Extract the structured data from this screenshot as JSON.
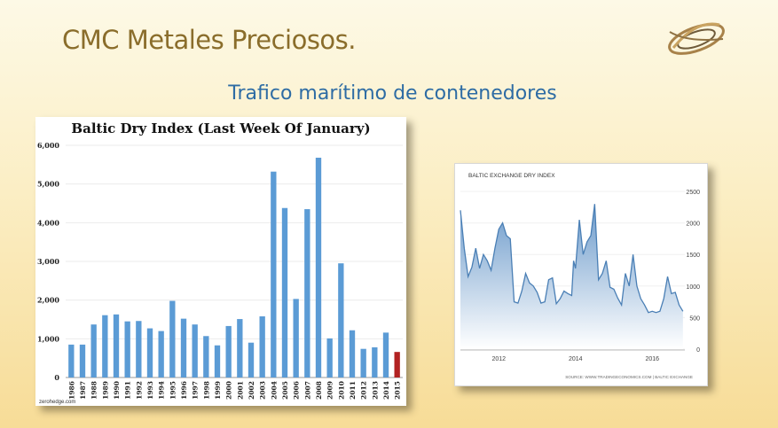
{
  "slide": {
    "title": "CMC Metales Preciosos.",
    "subtitle": "Trafico marítimo de contenedores"
  },
  "chart_data": [
    {
      "type": "bar",
      "title": "Baltic Dry Index (Last Week Of January)",
      "categories": [
        "1986",
        "1987",
        "1988",
        "1989",
        "1990",
        "1991",
        "1992",
        "1993",
        "1994",
        "1995",
        "1996",
        "1997",
        "1998",
        "1999",
        "2000",
        "2001",
        "2002",
        "2003",
        "2004",
        "2005",
        "2006",
        "2007",
        "2008",
        "2009",
        "2010",
        "2011",
        "2012",
        "2013",
        "2014",
        "2015"
      ],
      "values": [
        850,
        850,
        1370,
        1610,
        1630,
        1450,
        1460,
        1270,
        1200,
        1980,
        1520,
        1370,
        1070,
        830,
        1330,
        1510,
        900,
        1580,
        5320,
        4380,
        2030,
        4350,
        5680,
        1010,
        2950,
        1220,
        740,
        780,
        1160,
        660
      ],
      "highlight_index": 29,
      "ylim": [
        0,
        6000
      ],
      "yticks": [
        0,
        1000,
        2000,
        3000,
        4000,
        5000,
        6000
      ],
      "ytick_labels": [
        "0",
        "1,000",
        "2,000",
        "3,000",
        "4,000",
        "5,000",
        "6,000"
      ],
      "colors": {
        "bar": "#5b9bd5",
        "highlight": "#b22222"
      },
      "source": "zerohedge.com"
    },
    {
      "type": "area",
      "title": "BALTIC EXCHANGE DRY INDEX",
      "x": [
        2011.0,
        2011.1,
        2011.2,
        2011.3,
        2011.4,
        2011.5,
        2011.6,
        2011.7,
        2011.8,
        2011.9,
        2012.0,
        2012.1,
        2012.2,
        2012.3,
        2012.4,
        2012.5,
        2012.6,
        2012.7,
        2012.8,
        2012.9,
        2013.0,
        2013.1,
        2013.2,
        2013.3,
        2013.4,
        2013.5,
        2013.6,
        2013.7,
        2013.8,
        2013.9,
        2013.95,
        2014.0,
        2014.1,
        2014.2,
        2014.3,
        2014.4,
        2014.5,
        2014.6,
        2014.7,
        2014.8,
        2014.9,
        2015.0,
        2015.1,
        2015.2,
        2015.3,
        2015.4,
        2015.5,
        2015.6,
        2015.7,
        2015.8,
        2015.9,
        2016.0,
        2016.1,
        2016.2,
        2016.3,
        2016.4,
        2016.5,
        2016.6,
        2016.7,
        2016.8
      ],
      "values": [
        2200,
        1600,
        1150,
        1300,
        1600,
        1280,
        1500,
        1400,
        1250,
        1600,
        1900,
        2000,
        1800,
        1750,
        750,
        730,
        920,
        1200,
        1050,
        1000,
        900,
        730,
        750,
        1100,
        1130,
        720,
        800,
        920,
        880,
        850,
        1400,
        1280,
        2050,
        1500,
        1700,
        1800,
        2300,
        1100,
        1200,
        1400,
        980,
        950,
        810,
        700,
        1200,
        1000,
        1500,
        1000,
        800,
        700,
        580,
        600,
        580,
        600,
        800,
        1150,
        880,
        900,
        700,
        600
      ],
      "xlim": [
        2011,
        2016.85
      ],
      "ylim": [
        0,
        2500
      ],
      "yticks": [
        0,
        500,
        1000,
        1500,
        2000,
        2500
      ],
      "ytick_labels": [
        "0",
        "500",
        "1000",
        "1500",
        "2000",
        "2500"
      ],
      "xticks": [
        2012,
        2014,
        2016
      ],
      "xtick_labels": [
        "2012",
        "2014",
        "2016"
      ],
      "source": "SOURCE: WWW.TRADINGECONOMICS.COM | BALTIC EXCHANGE",
      "colors": {
        "line": "#4a7fb5",
        "fill_top": "#6d9bcb",
        "fill_bottom": "#ffffff"
      }
    }
  ]
}
